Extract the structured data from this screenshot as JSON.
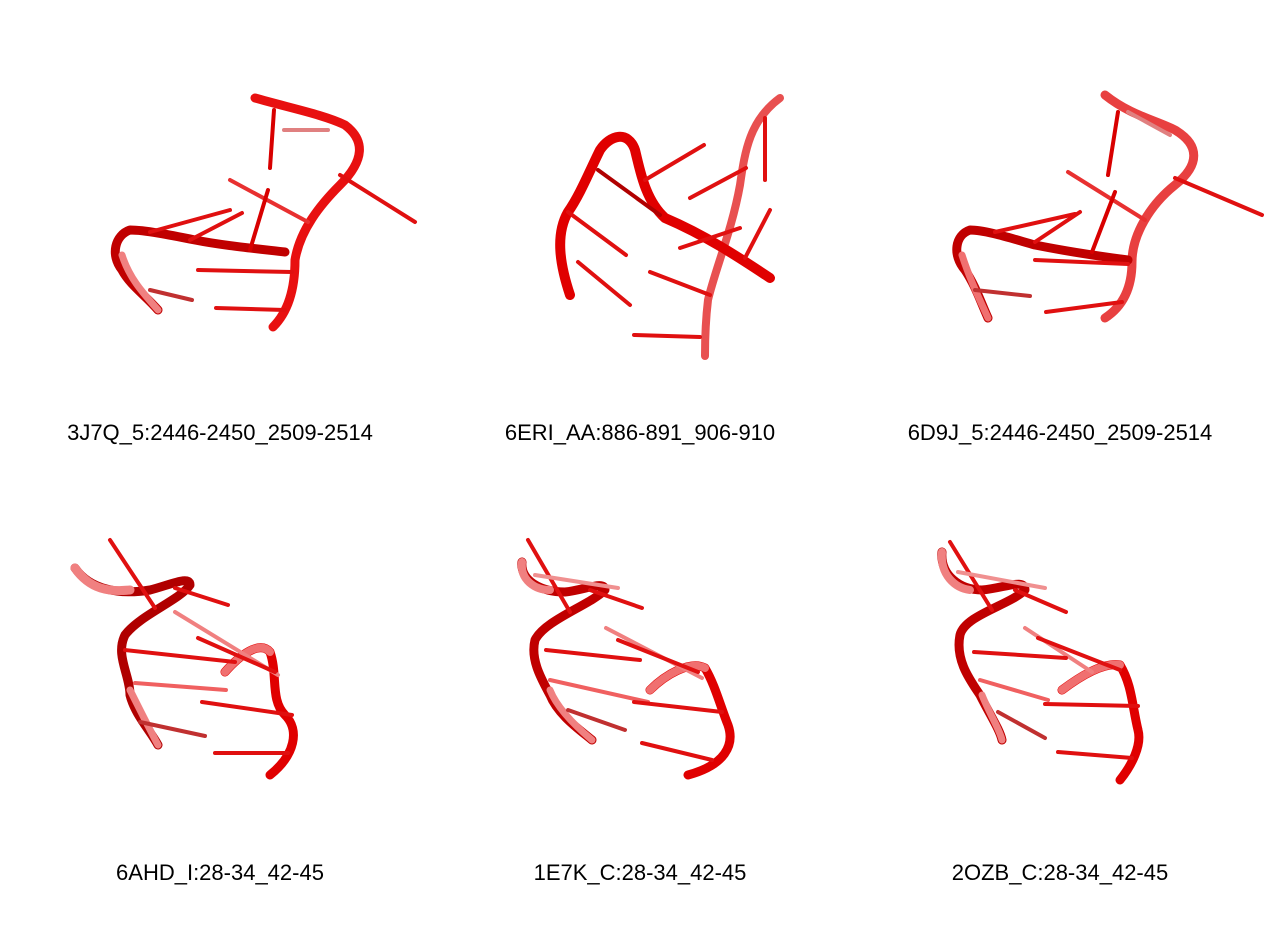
{
  "panels": [
    {
      "label": "3J7Q_5:2446-2450_2509-2514"
    },
    {
      "label": "6ERI_AA:886-891_906-910"
    },
    {
      "label": "6D9J_5:2446-2450_2509-2514"
    },
    {
      "label": "6AHD_I:28-34_42-45"
    },
    {
      "label": "1E7K_C:28-34_42-45"
    },
    {
      "label": "2OZB_C:28-34_42-45"
    }
  ],
  "colors": {
    "strand": "#e00000",
    "strand_dark": "#a00000",
    "strand_light": "#f07070"
  }
}
